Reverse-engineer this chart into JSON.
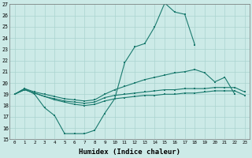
{
  "xlabel": "Humidex (Indice chaleur)",
  "x": [
    0,
    1,
    2,
    3,
    4,
    5,
    6,
    7,
    8,
    9,
    10,
    11,
    12,
    13,
    14,
    15,
    16,
    17,
    18,
    19,
    20,
    21,
    22,
    23
  ],
  "spike": [
    19.0,
    19.5,
    19.0,
    17.8,
    17.1,
    15.5,
    15.5,
    15.5,
    15.8,
    17.3,
    18.6,
    21.8,
    23.2,
    23.5,
    25.0,
    27.1,
    26.3,
    26.1,
    23.4,
    null,
    null,
    null,
    null,
    null
  ],
  "upper_diag": [
    19.0,
    19.5,
    19.2,
    19.0,
    18.8,
    18.6,
    18.5,
    18.4,
    18.5,
    19.0,
    19.4,
    19.7,
    20.0,
    20.3,
    20.5,
    20.7,
    20.9,
    21.0,
    21.2,
    20.9,
    20.1,
    20.5,
    19.0,
    null
  ],
  "mid_line": [
    19.0,
    19.4,
    19.1,
    18.8,
    18.6,
    18.4,
    18.3,
    18.2,
    18.3,
    18.7,
    18.9,
    19.0,
    19.1,
    19.2,
    19.3,
    19.4,
    19.4,
    19.5,
    19.5,
    19.5,
    19.6,
    19.6,
    19.6,
    19.2
  ],
  "low_line": [
    19.0,
    19.4,
    19.1,
    18.8,
    18.5,
    18.3,
    18.1,
    18.0,
    18.1,
    18.4,
    18.6,
    18.7,
    18.8,
    18.9,
    18.9,
    19.0,
    19.0,
    19.1,
    19.1,
    19.2,
    19.3,
    19.3,
    19.3,
    18.9
  ],
  "color": "#1a7a6e",
  "bg_color": "#cceae7",
  "grid_color": "#aad4d0",
  "ylim_min": 15,
  "ylim_max": 27
}
